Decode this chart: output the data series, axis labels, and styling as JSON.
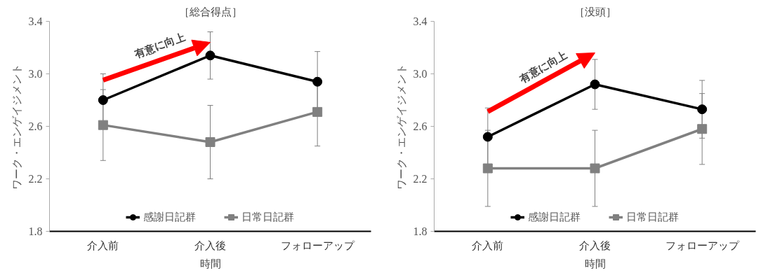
{
  "chart_data": [
    {
      "type": "line",
      "title": "［総合得点］",
      "xlabel": "時間",
      "ylabel": "ワーク・エンゲイジメント",
      "categories": [
        "介入前",
        "介入後",
        "フォローアップ"
      ],
      "ylim": [
        1.8,
        3.4
      ],
      "yticks": [
        {
          "value": 1.8,
          "label": "1.8"
        },
        {
          "value": 2.2,
          "label": "2.2"
        },
        {
          "value": 2.6,
          "label": "2.6"
        },
        {
          "value": 3.0,
          "label": "3.0"
        },
        {
          "value": 3.4,
          "label": "3.4"
        }
      ],
      "grid": false,
      "legend": "bottom",
      "annotations": [
        "有意に向上"
      ],
      "series": [
        {
          "name": "感謝日記群",
          "color": "#000000",
          "marker": "circle",
          "values": [
            2.8,
            3.14,
            2.94
          ],
          "errors": [
            0.2,
            0.18,
            0.23
          ]
        },
        {
          "name": "日常日記群",
          "color": "#808080",
          "marker": "square",
          "values": [
            2.61,
            2.48,
            2.71
          ],
          "errors": [
            0.27,
            0.28,
            0.26
          ]
        }
      ]
    },
    {
      "type": "line",
      "title": "［没頭］",
      "xlabel": "時間",
      "ylabel": "ワーク・エンゲイジメント",
      "categories": [
        "介入前",
        "介入後",
        "フォローアップ"
      ],
      "ylim": [
        1.8,
        3.4
      ],
      "yticks": [
        {
          "value": 1.8,
          "label": "1.8"
        },
        {
          "value": 2.2,
          "label": "2.2"
        },
        {
          "value": 2.6,
          "label": "2.6"
        },
        {
          "value": 3.0,
          "label": "3.0"
        },
        {
          "value": 3.4,
          "label": "3.4"
        }
      ],
      "grid": false,
      "legend": "bottom",
      "annotations": [
        "有意に向上"
      ],
      "series": [
        {
          "name": "感謝日記群",
          "color": "#000000",
          "marker": "circle",
          "values": [
            2.52,
            2.92,
            2.73
          ],
          "errors": [
            0.22,
            0.19,
            0.22
          ]
        },
        {
          "name": "日常日記群",
          "color": "#808080",
          "marker": "square",
          "values": [
            2.28,
            2.28,
            2.58
          ],
          "errors": [
            0.29,
            0.29,
            0.27
          ]
        }
      ]
    }
  ]
}
